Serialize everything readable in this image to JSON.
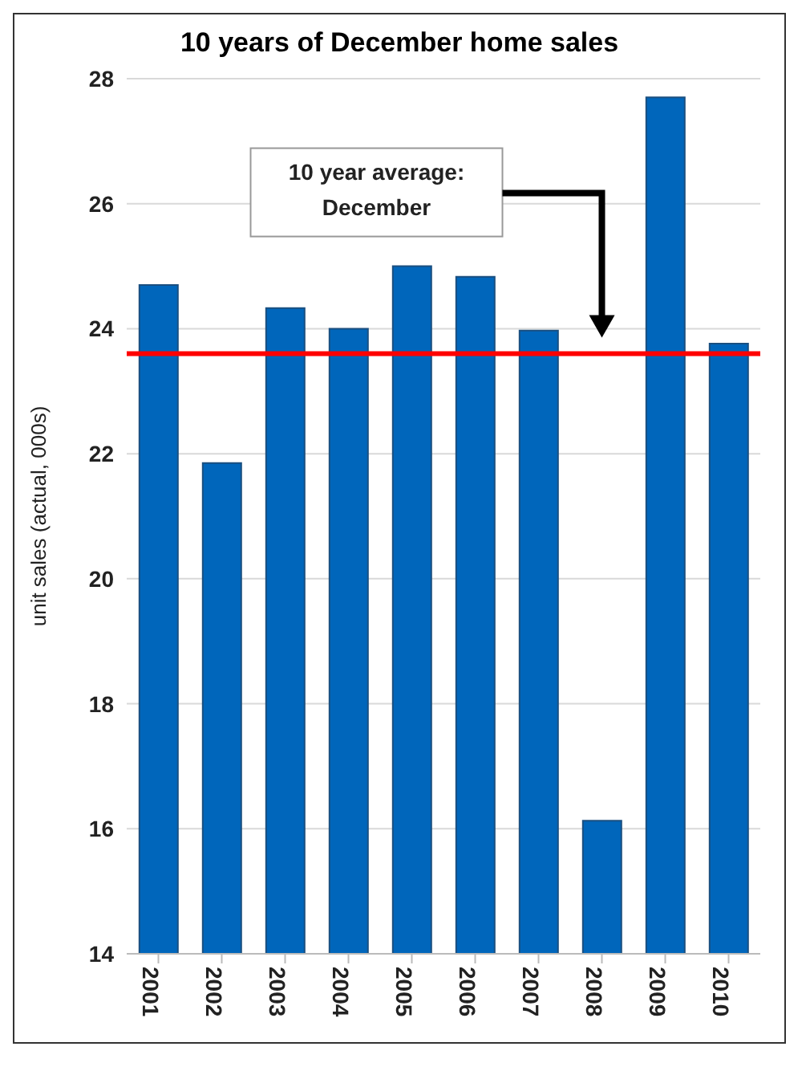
{
  "chart_data": {
    "type": "bar",
    "title": "10 years of December home sales",
    "ylabel": "unit sales (actual, 000s)",
    "categories": [
      "2001",
      "2002",
      "2003",
      "2004",
      "2005",
      "2006",
      "2007",
      "2008",
      "2009",
      "2010"
    ],
    "values": [
      24.7,
      21.85,
      24.33,
      24.0,
      25.0,
      24.83,
      23.97,
      16.13,
      27.7,
      23.76
    ],
    "color": "#0066bb",
    "ylim": [
      14,
      28
    ],
    "yticks": [
      14,
      16,
      18,
      20,
      22,
      24,
      26,
      28
    ],
    "grid": "y",
    "ref_lines": [
      {
        "axis": "y",
        "value": 23.6,
        "color": "#ff0000"
      }
    ],
    "annotations": [
      "10 year average: December"
    ]
  }
}
